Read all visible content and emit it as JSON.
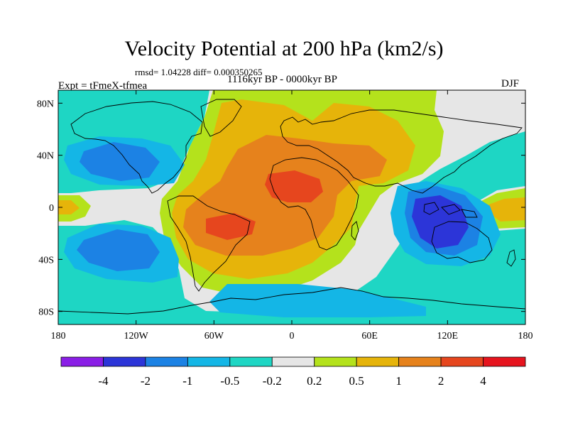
{
  "header": {
    "title": "Velocity Potential at 200 hPa (km2/s)",
    "stats": "rmsd= 1.04228 diff= 0.000350265",
    "period": "1116kyr BP - 0000kyr BP",
    "experiment": "Expt = tFmeX-tfmea",
    "season": "DJF"
  },
  "map": {
    "projection": "cylindrical equidistant",
    "lon_range": [
      -180,
      180
    ],
    "lat_range": [
      -90,
      90
    ],
    "lon_ticks": [
      {
        "value": -180,
        "label": "180"
      },
      {
        "value": -120,
        "label": "120W"
      },
      {
        "value": -60,
        "label": "60W"
      },
      {
        "value": 0,
        "label": "0"
      },
      {
        "value": 60,
        "label": "60E"
      },
      {
        "value": 120,
        "label": "120E"
      },
      {
        "value": 180,
        "label": "180"
      }
    ],
    "lat_ticks": [
      {
        "value": 80,
        "label": "80N"
      },
      {
        "value": 40,
        "label": "40N"
      },
      {
        "value": 0,
        "label": "0"
      },
      {
        "value": -40,
        "label": "40S"
      },
      {
        "value": -80,
        "label": "80S"
      }
    ],
    "background_color": "#e6e6e6",
    "coastline_color": "#000000"
  },
  "colorbar": {
    "levels": [
      "-4",
      "-2",
      "-1",
      "-0.5",
      "-0.2",
      "0.2",
      "0.5",
      "1",
      "2",
      "4"
    ],
    "colors": [
      "#8a1ee6",
      "#2c35d8",
      "#1c82e4",
      "#14b6e6",
      "#1ed6c4",
      "#e6e6e6",
      "#b4e21c",
      "#e6b40a",
      "#e6821c",
      "#e6461e",
      "#e6141e"
    ]
  }
}
